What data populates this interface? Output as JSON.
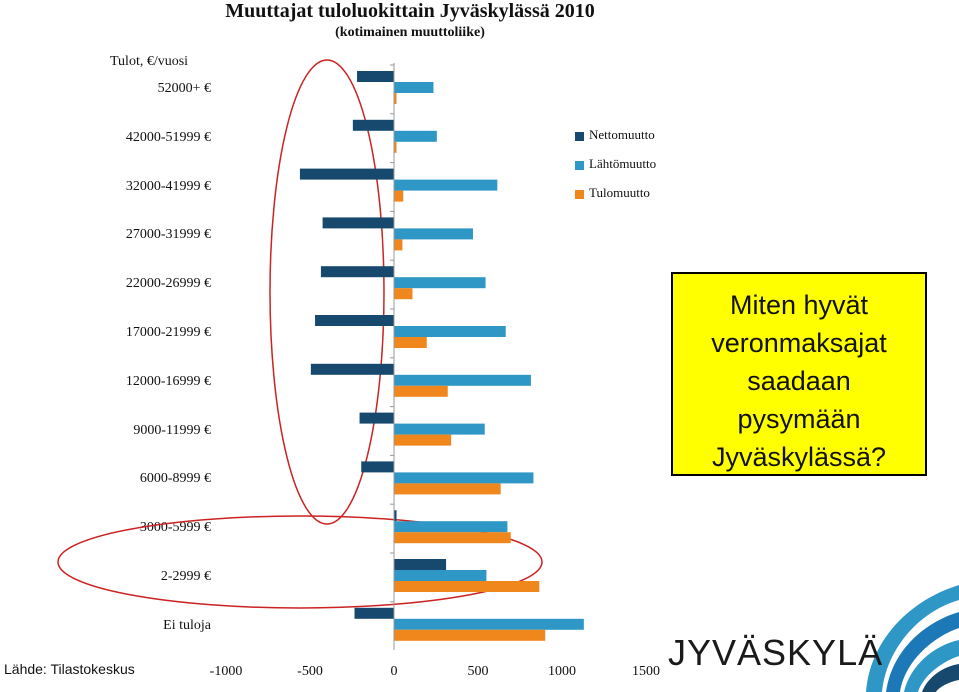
{
  "chart_data": {
    "type": "bar",
    "orientation": "horizontal",
    "title": "Muuttajat tuloluokittain Jyväskylässä 2010",
    "subtitle": "(kotimainen muuttoliike)",
    "ylabel": "Tulot, €/vuosi",
    "categories": [
      "52000+ €",
      "42000-51999 €",
      "32000-41999 €",
      "27000-31999 €",
      "22000-26999 €",
      "17000-21999 €",
      "12000-16999 €",
      "9000-11999 €",
      "6000-8999 €",
      "3000-5999 €",
      "2-2999 €",
      "Ei tuloja"
    ],
    "series": [
      {
        "name": "Nettomuutto",
        "color": "#17496e",
        "values": [
          -220,
          -245,
          -560,
          -425,
          -435,
          -470,
          -495,
          -205,
          -195,
          15,
          310,
          -235
        ]
      },
      {
        "name": "Lähtömuutto",
        "color": "#2e97c6",
        "values": [
          235,
          255,
          615,
          470,
          545,
          665,
          815,
          540,
          830,
          675,
          550,
          1130
        ]
      },
      {
        "name": "Tulomuutto",
        "color": "#f0871c",
        "values": [
          15,
          15,
          55,
          50,
          110,
          195,
          320,
          340,
          635,
          695,
          865,
          900
        ]
      }
    ],
    "xticks": [
      "-1000",
      "-500",
      "0",
      "500",
      "1000",
      "1500"
    ],
    "xlim": [
      -1000,
      1500
    ],
    "legend_position": "right"
  },
  "source": "Lähde: Tilastokeskus",
  "callout": [
    "Miten hyvät",
    "veronmaksajat",
    "saadaan",
    "pysymään",
    "Jyväskylässä?"
  ],
  "logo": "JYVÄSKYLÄ",
  "colors": {
    "callout_bg": "#ffff00",
    "ellipse": "#cc2222"
  }
}
